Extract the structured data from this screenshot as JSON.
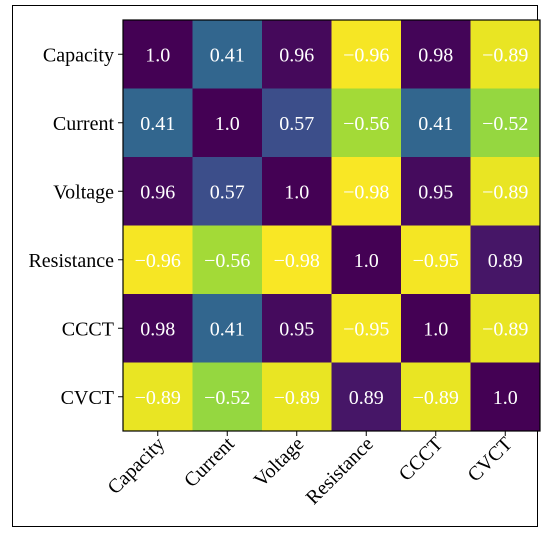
{
  "chart_data": {
    "type": "heatmap",
    "title": "",
    "xlabel": "",
    "ylabel": "",
    "rows": [
      "Capacity",
      "Current",
      "Voltage",
      "Resistance",
      "CCCT",
      "CVCT"
    ],
    "columns": [
      "Capacity",
      "Current",
      "Voltage",
      "Resistance",
      "CCCT",
      "CVCT"
    ],
    "values": [
      [
        1.0,
        0.41,
        0.96,
        -0.96,
        0.98,
        -0.89
      ],
      [
        0.41,
        1.0,
        0.57,
        -0.56,
        0.41,
        -0.52
      ],
      [
        0.96,
        0.57,
        1.0,
        -0.98,
        0.95,
        -0.89
      ],
      [
        -0.96,
        -0.56,
        -0.98,
        1.0,
        -0.95,
        0.89
      ],
      [
        0.98,
        0.41,
        0.95,
        -0.95,
        1.0,
        -0.89
      ],
      [
        -0.89,
        -0.52,
        -0.89,
        0.89,
        -0.89,
        1.0
      ]
    ],
    "labels": [
      [
        "1.0",
        "0.41",
        "0.96",
        "−0.96",
        "0.98",
        "−0.89"
      ],
      [
        "0.41",
        "1.0",
        "0.57",
        "−0.56",
        "0.41",
        "−0.52"
      ],
      [
        "0.96",
        "0.57",
        "1.0",
        "−0.98",
        "0.95",
        "−0.89"
      ],
      [
        "−0.96",
        "−0.56",
        "−0.98",
        "1.0",
        "−0.95",
        "0.89"
      ],
      [
        "0.98",
        "0.41",
        "0.95",
        "−0.95",
        "1.0",
        "−0.89"
      ],
      [
        "−0.89",
        "−0.52",
        "−0.89",
        "0.89",
        "−0.89",
        "1.0"
      ]
    ],
    "colormap": "viridis_r",
    "vlim": [
      -1.0,
      1.0
    ],
    "grid": false,
    "legend": "none"
  }
}
